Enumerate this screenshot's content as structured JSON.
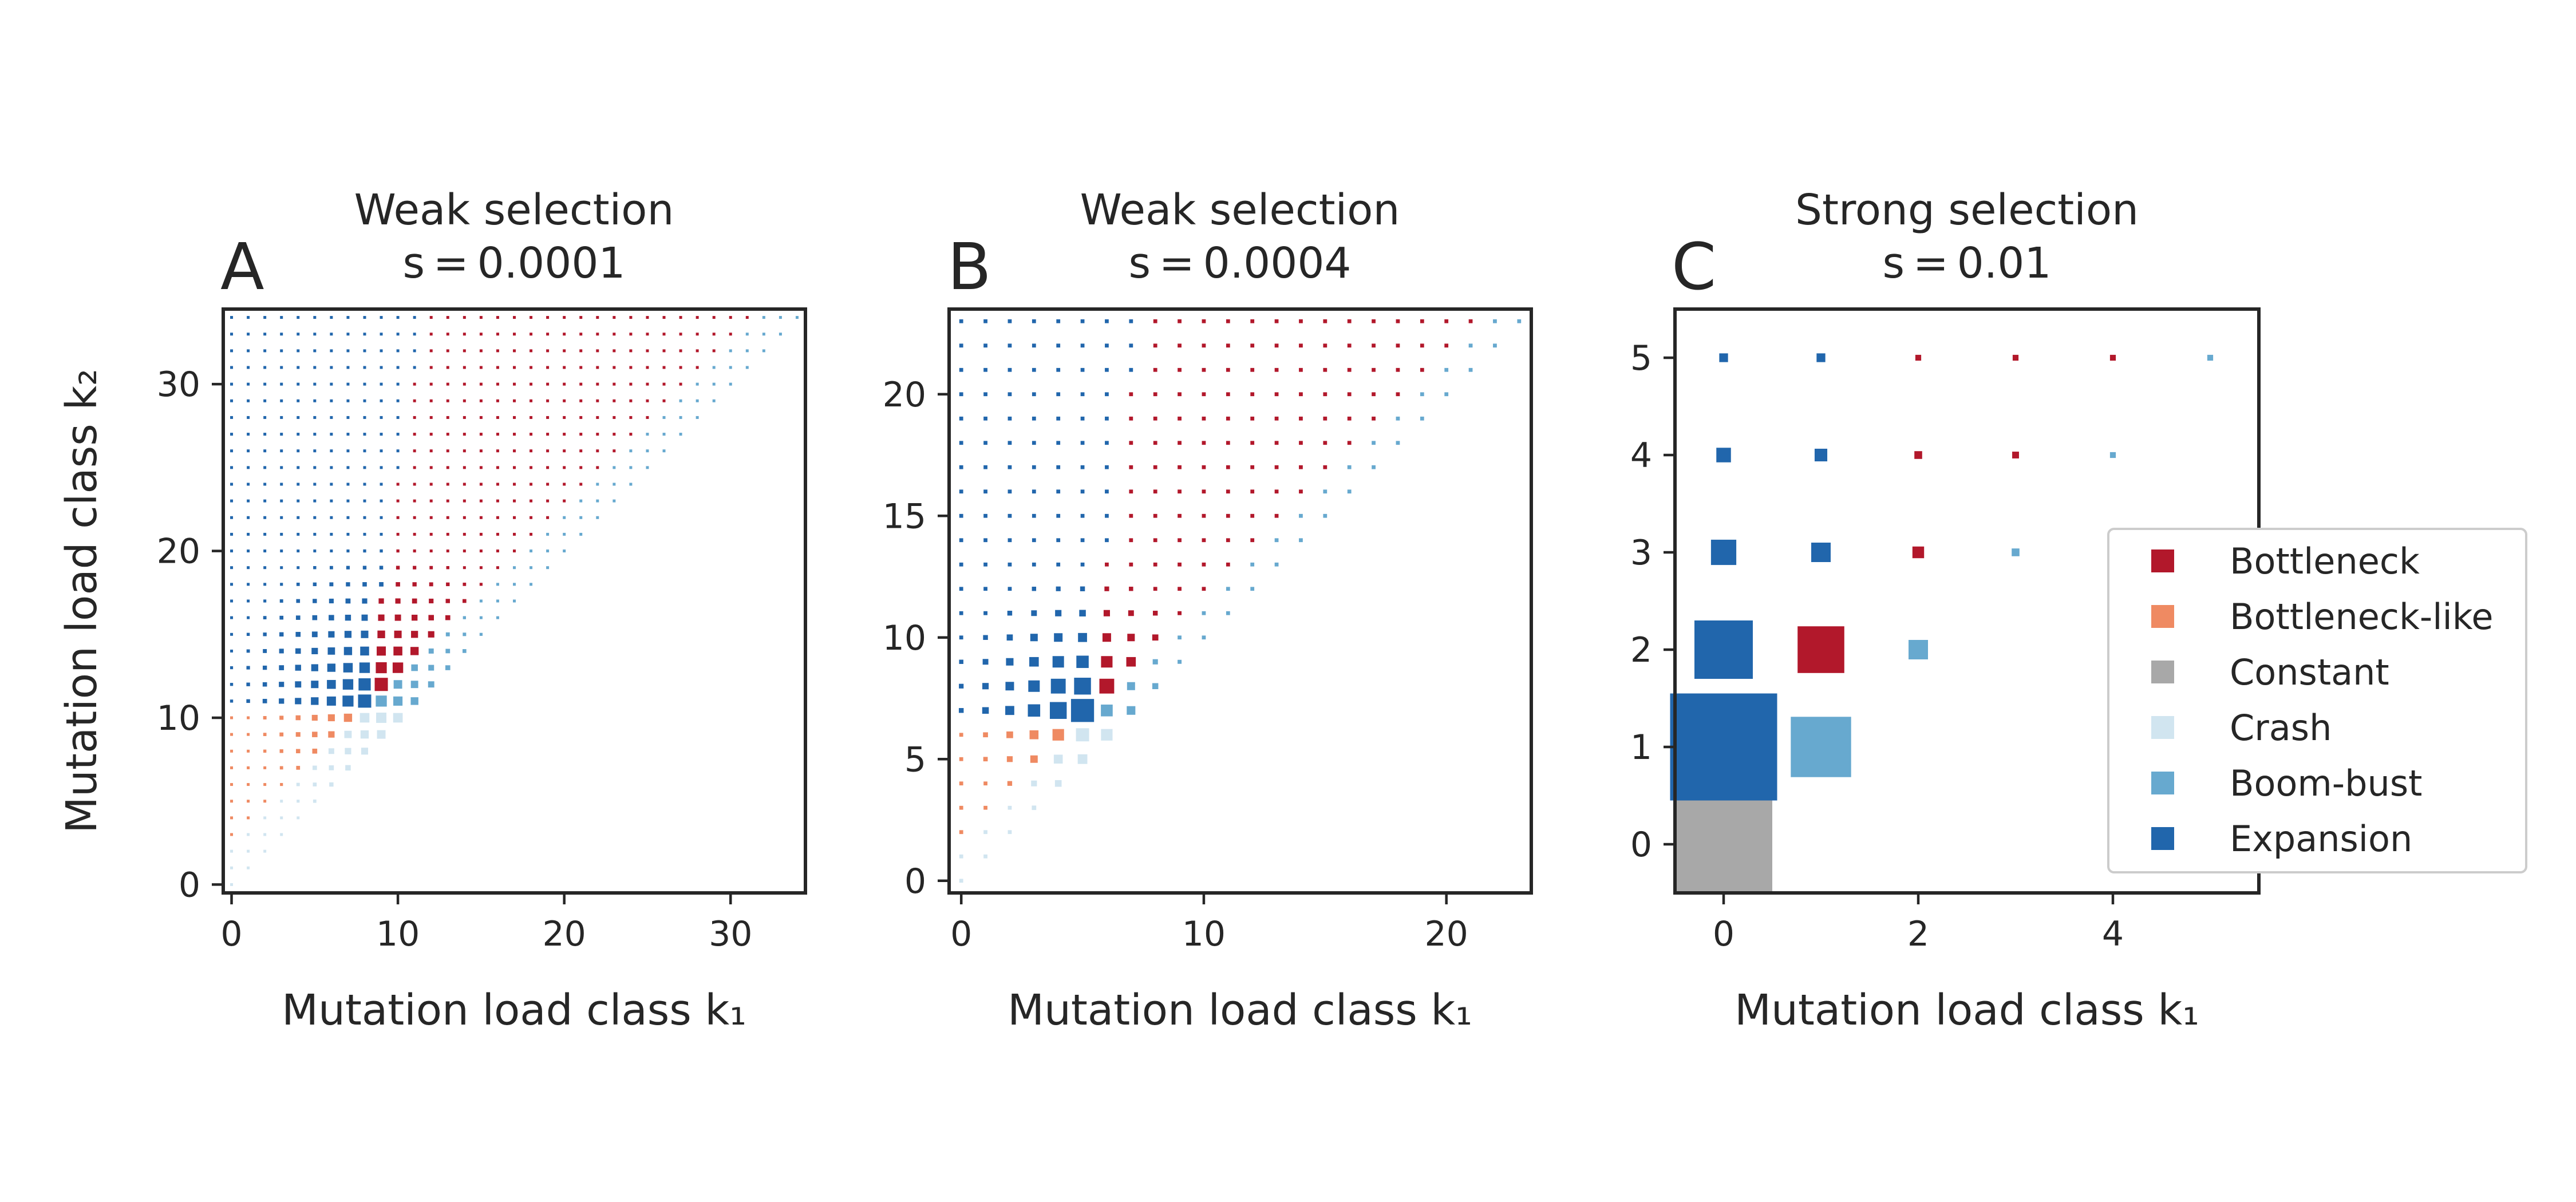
{
  "palette": {
    "Bottleneck": "#b2182b",
    "Bottleneck-like": "#ef8a62",
    "Constant": "#a8a8a8",
    "Crash": "#d1e5f0",
    "Boom-bust": "#67a9cf",
    "Expansion": "#2166ac"
  },
  "legend": {
    "placement": "right of panel C",
    "items": [
      {
        "label": "Bottleneck",
        "category": "Bottleneck"
      },
      {
        "label": "Bottleneck-like",
        "category": "Bottleneck-like"
      },
      {
        "label": "Constant",
        "category": "Constant"
      },
      {
        "label": "Crash",
        "category": "Crash"
      },
      {
        "label": "Boom-bust",
        "category": "Boom-bust"
      },
      {
        "label": "Expansion",
        "category": "Expansion"
      }
    ]
  },
  "chart_data": [
    {
      "type": "scatter",
      "panel": "A",
      "title_line1": "Weak selection",
      "title_line2": "s = 0.0001",
      "xlabel": "Mutation load class k₁",
      "ylabel": "Mutation load class k₂",
      "xlim": [
        -0.5,
        34.5
      ],
      "ylim": [
        -0.5,
        34.5
      ],
      "xticks": [
        0,
        10,
        20,
        30
      ],
      "yticks": [
        0,
        10,
        20,
        30
      ],
      "grid": false,
      "points_rule": {
        "domain": "0 <= k1 <= k2 <= 34",
        "category_rule": [
          {
            "category": "Bottleneck-like",
            "when": "k2 <= 10 and k1 <= k2 - 3"
          },
          {
            "category": "Crash",
            "when": "k2 <= 10 and k1 >= k2 - 2"
          },
          {
            "category": "Boom-bust",
            "when": "k2 > 10 and k1 >= k2 - 2"
          },
          {
            "category": "Bottleneck",
            "when": "k2 > 10 and k1 > k2 - 3 - 0.85 * (k2 - 11) and k1 >= 8"
          },
          {
            "category": "Expansion",
            "when": "otherwise"
          }
        ],
        "size_rule": "square side peaks near (k1, k2) = (9, 11) and decays with distance along the diagonal"
      }
    },
    {
      "type": "scatter",
      "panel": "B",
      "title_line1": "Weak selection",
      "title_line2": "s = 0.0004",
      "xlabel": "Mutation load class k₁",
      "ylabel": "",
      "xlim": [
        -0.5,
        23.5
      ],
      "ylim": [
        -0.5,
        23.5
      ],
      "xticks": [
        0,
        10,
        20
      ],
      "yticks": [
        0,
        5,
        10,
        15,
        20
      ],
      "grid": false,
      "points_rule": {
        "domain": "0 <= k1 <= k2 <= 23",
        "category_rule": [
          {
            "category": "Bottleneck-like",
            "when": "k2 <= 6 and k1 <= k2 - 2"
          },
          {
            "category": "Crash",
            "when": "k2 <= 6 and k1 >= k2 - 1"
          },
          {
            "category": "Boom-bust",
            "when": "k2 > 6 and k1 >= k2 - 1"
          },
          {
            "category": "Bottleneck",
            "when": "k2 > 6 and k1 > k2 - 2 - 0.85 * (k2 - 7) and k1 >= 5"
          },
          {
            "category": "Expansion",
            "when": "otherwise"
          }
        ],
        "size_rule": "square side peaks near (k1, k2) = (5, 7) and decays with distance along the diagonal"
      }
    },
    {
      "type": "scatter",
      "panel": "C",
      "title_line1": "Strong selection",
      "title_line2": "s = 0.01",
      "xlabel": "Mutation load class k₁",
      "ylabel": "",
      "xlim": [
        -0.5,
        5.5
      ],
      "ylim": [
        -0.5,
        5.5
      ],
      "xticks": [
        0,
        2,
        4
      ],
      "yticks": [
        0,
        1,
        2,
        3,
        4,
        5
      ],
      "grid": false,
      "points": [
        {
          "k1": 0,
          "k2": 0,
          "category": "Constant",
          "size": 1.0
        },
        {
          "k1": 0,
          "k2": 1,
          "category": "Expansion",
          "size": 1.1
        },
        {
          "k1": 1,
          "k2": 1,
          "category": "Boom-bust",
          "size": 0.62
        },
        {
          "k1": 0,
          "k2": 2,
          "category": "Expansion",
          "size": 0.6
        },
        {
          "k1": 1,
          "k2": 2,
          "category": "Bottleneck",
          "size": 0.48
        },
        {
          "k1": 2,
          "k2": 2,
          "category": "Boom-bust",
          "size": 0.2
        },
        {
          "k1": 0,
          "k2": 3,
          "category": "Expansion",
          "size": 0.26
        },
        {
          "k1": 1,
          "k2": 3,
          "category": "Expansion",
          "size": 0.2
        },
        {
          "k1": 2,
          "k2": 3,
          "category": "Bottleneck",
          "size": 0.12
        },
        {
          "k1": 3,
          "k2": 3,
          "category": "Boom-bust",
          "size": 0.08
        },
        {
          "k1": 0,
          "k2": 4,
          "category": "Expansion",
          "size": 0.15
        },
        {
          "k1": 1,
          "k2": 4,
          "category": "Expansion",
          "size": 0.13
        },
        {
          "k1": 2,
          "k2": 4,
          "category": "Bottleneck",
          "size": 0.08
        },
        {
          "k1": 3,
          "k2": 4,
          "category": "Bottleneck",
          "size": 0.07
        },
        {
          "k1": 4,
          "k2": 4,
          "category": "Boom-bust",
          "size": 0.06
        },
        {
          "k1": 0,
          "k2": 5,
          "category": "Expansion",
          "size": 0.09
        },
        {
          "k1": 1,
          "k2": 5,
          "category": "Expansion",
          "size": 0.09
        },
        {
          "k1": 2,
          "k2": 5,
          "category": "Bottleneck",
          "size": 0.06
        },
        {
          "k1": 3,
          "k2": 5,
          "category": "Bottleneck",
          "size": 0.06
        },
        {
          "k1": 4,
          "k2": 5,
          "category": "Bottleneck",
          "size": 0.06
        },
        {
          "k1": 5,
          "k2": 5,
          "category": "Boom-bust",
          "size": 0.06
        }
      ]
    }
  ]
}
